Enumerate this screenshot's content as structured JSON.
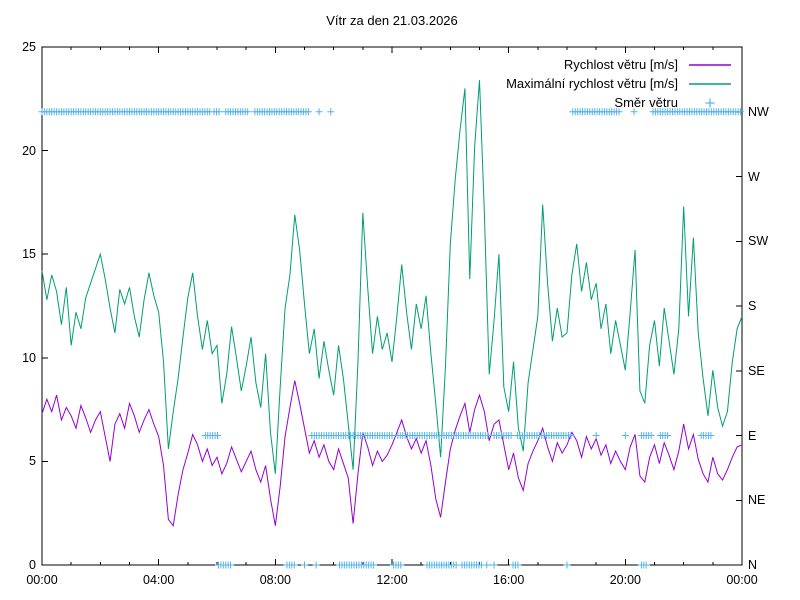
{
  "title": "Vítr za den 21.03.2026",
  "colors": {
    "avg_wind": "#9400D3",
    "max_wind": "#009E73",
    "direction": "#56B4E9",
    "axis": "#000000",
    "background": "#ffffff"
  },
  "chart_data": {
    "type": "line",
    "title": "Vítr za den 21.03.2026",
    "x_unit": "time_of_day_hours",
    "x_range": [
      0,
      24
    ],
    "y_range": [
      0,
      25
    ],
    "grid": false,
    "legend_position": "top-right-inside",
    "axes": {
      "x": {
        "major_every_hours": 4,
        "minor_every_hours": 1,
        "ticks": [
          {
            "hour": 0,
            "label": "00:00"
          },
          {
            "hour": 4,
            "label": "04:00"
          },
          {
            "hour": 8,
            "label": "08:00"
          },
          {
            "hour": 12,
            "label": "12:00"
          },
          {
            "hour": 16,
            "label": "16:00"
          },
          {
            "hour": 20,
            "label": "20:00"
          },
          {
            "hour": 24,
            "label": "00:00"
          }
        ]
      },
      "y": {
        "tick_values": [
          0,
          5,
          10,
          15,
          20,
          25
        ],
        "label": ""
      },
      "y2": {
        "labels": [
          "N",
          "NE",
          "E",
          "SE",
          "S",
          "SW",
          "W",
          "NW"
        ],
        "values": [
          0,
          3.125,
          6.25,
          9.375,
          12.5,
          15.625,
          18.75,
          21.875
        ]
      }
    },
    "series_step_minutes": 10,
    "series": [
      {
        "name": "Rychlost větru [m/s]",
        "color": "#9400D3",
        "values": [
          7.3,
          8.0,
          7.4,
          8.2,
          7.0,
          7.6,
          7.2,
          6.6,
          7.7,
          7.1,
          6.4,
          7.0,
          7.4,
          6.2,
          5.0,
          6.8,
          7.3,
          6.6,
          7.8,
          7.2,
          6.4,
          7.0,
          7.5,
          6.8,
          6.2,
          4.8,
          2.2,
          1.9,
          3.4,
          4.6,
          5.4,
          6.3,
          5.8,
          5.0,
          5.6,
          4.8,
          5.2,
          4.4,
          4.9,
          5.7,
          5.1,
          4.5,
          5.0,
          5.5,
          4.6,
          4.0,
          4.8,
          3.2,
          1.9,
          3.8,
          6.2,
          7.6,
          8.9,
          7.8,
          6.6,
          5.4,
          6.0,
          5.2,
          5.8,
          5.0,
          4.6,
          5.6,
          4.9,
          4.2,
          2.0,
          4.4,
          6.4,
          5.7,
          4.8,
          5.5,
          5.0,
          5.3,
          5.8,
          6.4,
          7.0,
          6.2,
          5.6,
          6.1,
          5.4,
          6.0,
          4.8,
          3.2,
          2.3,
          4.0,
          5.6,
          6.5,
          7.2,
          7.8,
          6.4,
          7.5,
          8.2,
          7.4,
          6.0,
          6.8,
          7.0,
          5.8,
          4.6,
          5.4,
          4.2,
          3.6,
          4.9,
          5.5,
          6.0,
          6.6,
          5.7,
          5.0,
          5.9,
          5.4,
          5.8,
          6.4,
          6.0,
          5.2,
          6.2,
          5.6,
          6.1,
          5.3,
          5.8,
          4.9,
          5.5,
          5.0,
          4.6,
          5.7,
          6.3,
          4.3,
          4.0,
          5.2,
          5.8,
          4.9,
          5.9,
          5.3,
          4.6,
          5.5,
          6.8,
          5.6,
          6.3,
          5.1,
          4.4,
          4.0,
          5.2,
          4.4,
          4.1,
          4.6,
          5.2,
          5.7,
          5.8
        ]
      },
      {
        "name": "Maximální rychlost větru [m/s]",
        "color": "#009E73",
        "values": [
          14.2,
          12.8,
          14.0,
          13.2,
          11.6,
          13.4,
          10.6,
          12.2,
          11.4,
          12.9,
          13.6,
          14.3,
          15.0,
          13.8,
          12.4,
          11.2,
          13.3,
          12.6,
          13.4,
          12.0,
          11.0,
          12.8,
          14.1,
          13.0,
          12.2,
          9.8,
          5.6,
          7.4,
          9.0,
          11.0,
          12.9,
          14.1,
          12.0,
          10.4,
          11.8,
          10.2,
          10.6,
          7.8,
          9.2,
          11.5,
          10.0,
          8.4,
          9.6,
          11.0,
          8.8,
          7.6,
          10.2,
          6.4,
          4.4,
          8.6,
          12.4,
          14.0,
          16.9,
          15.2,
          12.6,
          10.2,
          11.4,
          9.0,
          10.8,
          9.4,
          8.2,
          10.6,
          9.0,
          6.8,
          4.6,
          9.8,
          17.0,
          13.4,
          10.2,
          12.0,
          10.4,
          11.2,
          9.8,
          12.0,
          14.5,
          12.2,
          10.4,
          12.6,
          11.4,
          13.0,
          10.2,
          7.8,
          5.2,
          9.6,
          15.5,
          18.6,
          21.0,
          23.0,
          13.8,
          20.2,
          23.4,
          17.0,
          9.2,
          11.8,
          15.0,
          8.6,
          7.4,
          9.8,
          6.6,
          5.5,
          8.8,
          10.4,
          12.0,
          17.4,
          13.6,
          10.8,
          12.4,
          11.0,
          11.2,
          14.0,
          15.5,
          13.2,
          14.6,
          12.8,
          13.6,
          11.4,
          12.6,
          10.2,
          11.8,
          10.6,
          9.4,
          12.2,
          15.2,
          8.4,
          7.8,
          10.6,
          11.8,
          9.6,
          12.4,
          10.8,
          9.2,
          11.4,
          17.3,
          12.0,
          15.8,
          11.2,
          9.0,
          7.2,
          9.4,
          7.6,
          6.7,
          7.4,
          9.8,
          11.4,
          12.0
        ]
      }
    ],
    "direction": {
      "name": "Směr větru",
      "color": "#56B4E9",
      "marker": "plus",
      "marker_step_minutes": 5,
      "segments": [
        {
          "dir": "NW",
          "from": 0.0,
          "to": 5.75
        },
        {
          "dir": "NW",
          "from": 5.9,
          "to": 6.1
        },
        {
          "dir": "NW",
          "from": 6.3,
          "to": 7.1
        },
        {
          "dir": "NW",
          "from": 7.3,
          "to": 9.2
        },
        {
          "dir": "NW",
          "from": 9.5,
          "to": 9.5
        },
        {
          "dir": "NW",
          "from": 9.9,
          "to": 9.9
        },
        {
          "dir": "NW",
          "from": 18.2,
          "to": 19.85
        },
        {
          "dir": "NW",
          "from": 20.3,
          "to": 20.3
        },
        {
          "dir": "NW",
          "from": 20.95,
          "to": 23.95
        },
        {
          "dir": "E",
          "from": 5.6,
          "to": 6.05
        },
        {
          "dir": "E",
          "from": 9.25,
          "to": 12.05
        },
        {
          "dir": "E",
          "from": 12.2,
          "to": 15.3
        },
        {
          "dir": "E",
          "from": 15.5,
          "to": 16.1
        },
        {
          "dir": "E",
          "from": 16.3,
          "to": 18.15
        },
        {
          "dir": "E",
          "from": 19.0,
          "to": 19.0
        },
        {
          "dir": "E",
          "from": 20.0,
          "to": 20.0
        },
        {
          "dir": "E",
          "from": 20.55,
          "to": 20.9
        },
        {
          "dir": "E",
          "from": 21.2,
          "to": 21.5
        },
        {
          "dir": "E",
          "from": 22.6,
          "to": 23.0
        },
        {
          "dir": "N",
          "from": 6.05,
          "to": 6.5
        },
        {
          "dir": "N",
          "from": 8.4,
          "to": 8.7
        },
        {
          "dir": "N",
          "from": 9.0,
          "to": 9.0
        },
        {
          "dir": "N",
          "from": 9.4,
          "to": 9.4
        },
        {
          "dir": "N",
          "from": 10.2,
          "to": 11.4
        },
        {
          "dir": "N",
          "from": 12.05,
          "to": 12.3
        },
        {
          "dir": "N",
          "from": 13.2,
          "to": 14.2
        },
        {
          "dir": "N",
          "from": 14.4,
          "to": 15.1
        },
        {
          "dir": "N",
          "from": 15.25,
          "to": 15.25
        },
        {
          "dir": "N",
          "from": 15.5,
          "to": 15.5
        },
        {
          "dir": "N",
          "from": 16.15,
          "to": 16.35
        },
        {
          "dir": "N",
          "from": 18.0,
          "to": 18.0
        },
        {
          "dir": "N",
          "from": 20.55,
          "to": 20.75
        }
      ]
    }
  }
}
